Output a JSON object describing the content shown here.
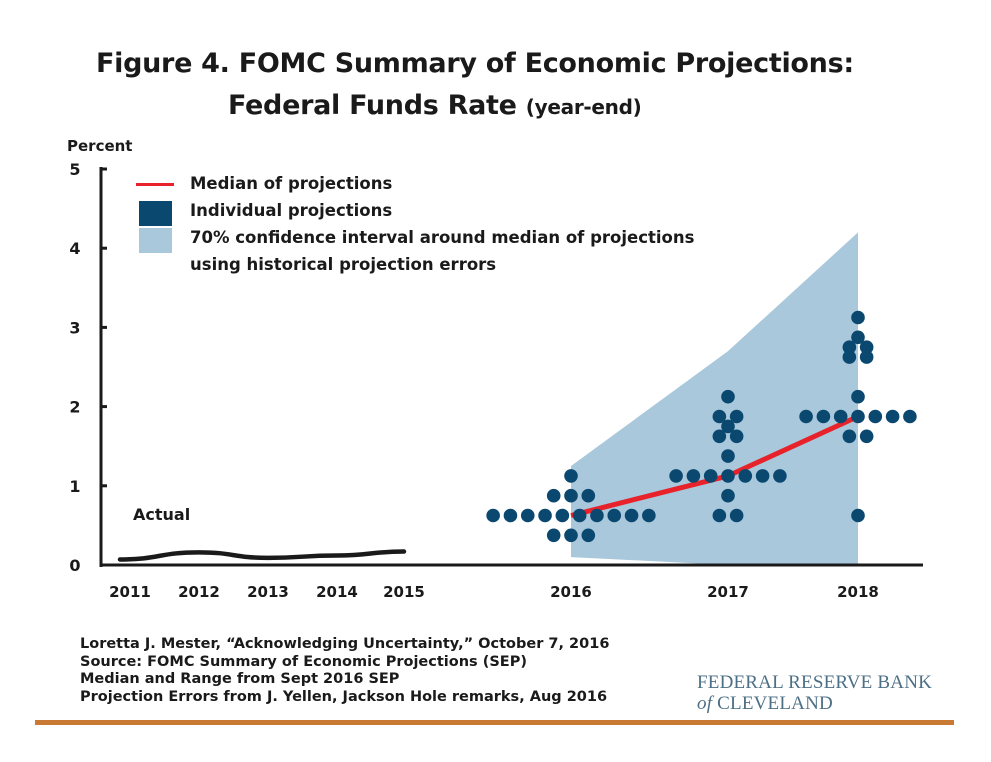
{
  "header": {
    "title_line1": "Figure 4. FOMC Summary of Economic Projections:",
    "title_line2_main": "Federal Funds Rate",
    "title_line2_sub": "(year-end)"
  },
  "chart_data": {
    "type": "scatter",
    "title": "Figure 4. FOMC Summary of Economic Projections: Federal Funds Rate (year-end)",
    "xlabel": "",
    "ylabel": "Percent",
    "ylim": [
      0,
      5
    ],
    "yticks": [
      "0",
      "1",
      "2",
      "3",
      "4",
      "5"
    ],
    "xtick_labels": [
      "2011",
      "2012",
      "2013",
      "2014",
      "2015",
      "2016",
      "2017",
      "2018"
    ],
    "grid": false,
    "legend_placement": "top-left",
    "legend": [
      {
        "label": "Median of projections",
        "kind": "line",
        "color": "#e8222a"
      },
      {
        "label": "Individual projections",
        "kind": "square",
        "color": "#0b4870"
      },
      {
        "label": "70% confidence interval around median of projections",
        "label_line2": "using historical projection errors",
        "kind": "square",
        "color": "#a9c8dc"
      }
    ],
    "actual": {
      "name": "Actual",
      "color": "#1a1a1a",
      "x": [
        "2011",
        "2012",
        "2013",
        "2014",
        "2015"
      ],
      "values": [
        0.07,
        0.16,
        0.09,
        0.12,
        0.17
      ]
    },
    "median": {
      "name": "Median of projections",
      "color": "#e8222a",
      "x": [
        "2016",
        "2017",
        "2018"
      ],
      "values": [
        0.625,
        1.125,
        1.875
      ]
    },
    "confidence_band": {
      "name": "70% confidence interval",
      "color": "#a9c8dc",
      "x": [
        "2016",
        "2017",
        "2018"
      ],
      "upper": [
        1.25,
        2.7,
        4.2
      ],
      "lower": [
        0.1,
        0.0,
        0.0
      ]
    },
    "individual_projections": {
      "name": "Individual projections",
      "color": "#0b4870",
      "years": [
        {
          "year": "2016",
          "levels": [
            {
              "value": 1.125,
              "count": 1
            },
            {
              "value": 0.875,
              "count": 3
            },
            {
              "value": 0.625,
              "count": 10
            },
            {
              "value": 0.375,
              "count": 3
            }
          ]
        },
        {
          "year": "2017",
          "levels": [
            {
              "value": 2.125,
              "count": 1
            },
            {
              "value": 1.875,
              "count": 2
            },
            {
              "value": 1.75,
              "count": 1
            },
            {
              "value": 1.625,
              "count": 2
            },
            {
              "value": 1.375,
              "count": 1
            },
            {
              "value": 1.125,
              "count": 7
            },
            {
              "value": 0.875,
              "count": 1
            },
            {
              "value": 0.625,
              "count": 2
            }
          ]
        },
        {
          "year": "2018",
          "levels": [
            {
              "value": 3.125,
              "count": 1
            },
            {
              "value": 2.875,
              "count": 1
            },
            {
              "value": 2.75,
              "count": 2
            },
            {
              "value": 2.625,
              "count": 2
            },
            {
              "value": 2.125,
              "count": 1
            },
            {
              "value": 1.875,
              "count": 7
            },
            {
              "value": 1.625,
              "count": 2
            },
            {
              "value": 0.625,
              "count": 1
            }
          ]
        }
      ]
    },
    "annotations": [
      "Actual"
    ]
  },
  "footer": {
    "lines": [
      "Loretta J. Mester, “Acknowledging Uncertainty,” October 7, 2016",
      "Source: FOMC Summary of Economic Projections (SEP)",
      "Median and Range from Sept 2016 SEP",
      "Projection Errors from J. Yellen, Jackson Hole remarks, Aug 2016"
    ]
  },
  "logo": {
    "line1": "FEDERAL RESERVE BANK",
    "line2_of": "of",
    "line2_name": "CLEVELAND"
  },
  "colors": {
    "accent_rule": "#c87a35",
    "logo_text": "#4d6f86"
  }
}
